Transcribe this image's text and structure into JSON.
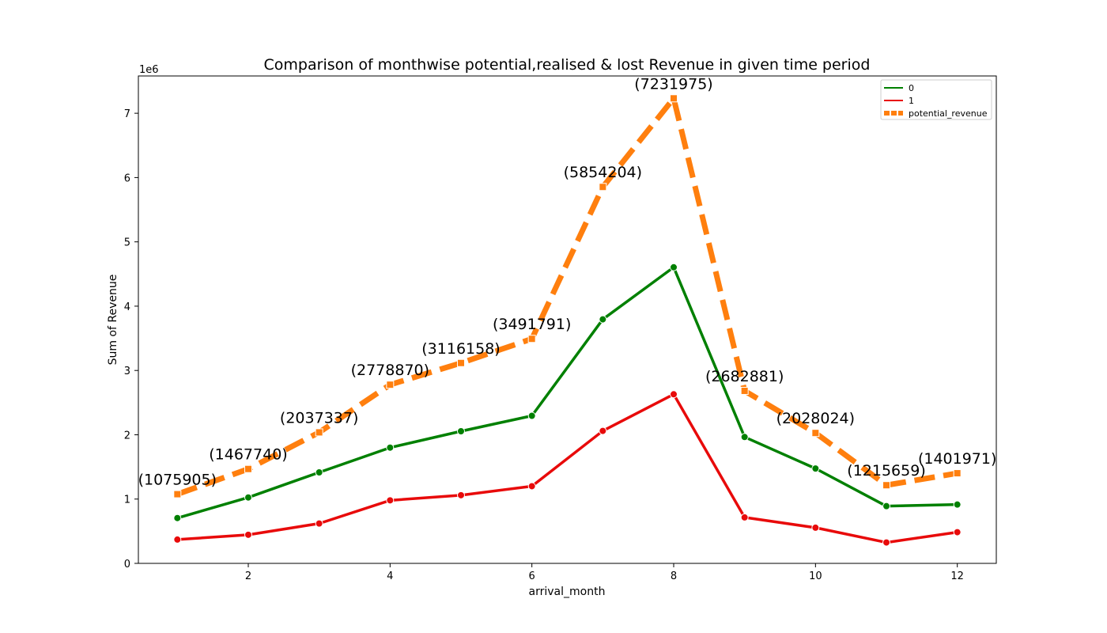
{
  "chart_data": {
    "type": "line",
    "title": "Comparison of monthwise potential,realised & lost Revenue in given time period",
    "xlabel": "arrival_month",
    "ylabel": "Sum of Revenue",
    "y_offset_label": "1e6",
    "xlim": [
      0.45,
      12.55
    ],
    "ylim": [
      0,
      7.58
    ],
    "x": [
      1,
      2,
      3,
      4,
      5,
      6,
      7,
      8,
      9,
      10,
      11,
      12
    ],
    "x_ticks": [
      2,
      4,
      6,
      8,
      10,
      12
    ],
    "y_ticks": [
      0,
      1,
      2,
      3,
      4,
      5,
      6,
      7
    ],
    "grid": false,
    "legend_position": "upper right",
    "series": [
      {
        "name": "0",
        "color": "#008000",
        "style": "solid",
        "marker": "circle",
        "values": [
          0.705,
          1.025,
          1.415,
          1.8,
          2.055,
          2.295,
          3.795,
          4.605,
          1.965,
          1.475,
          0.89,
          0.915
        ]
      },
      {
        "name": "1",
        "color": "#e80a0a",
        "style": "solid",
        "marker": "circle",
        "values": [
          0.37,
          0.445,
          0.62,
          0.98,
          1.06,
          1.2,
          2.06,
          2.63,
          0.715,
          0.555,
          0.325,
          0.485
        ]
      },
      {
        "name": "potential_revenue",
        "color": "#ff7f0e",
        "style": "dashed",
        "marker": "square",
        "values": [
          1.075905,
          1.46774,
          2.037337,
          2.77887,
          3.116158,
          3.491791,
          5.854204,
          7.231975,
          2.682881,
          2.028024,
          1.215659,
          1.401971
        ]
      }
    ],
    "annotations": [
      "(1075905)",
      "(1467740)",
      "(2037337)",
      "(2778870)",
      "(3116158)",
      "(3491791)",
      "(5854204)",
      "(7231975)",
      "(2682881)",
      "(2028024)",
      "(1215659)",
      "(1401971)"
    ]
  }
}
